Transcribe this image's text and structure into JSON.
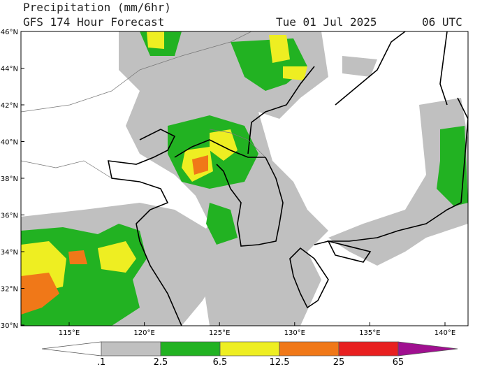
{
  "header": {
    "title": "Precipitation (mm/6hr)",
    "subtitle": "GFS 174 Hour Forecast",
    "date": "Tue 01 Jul 2025",
    "time": "06 UTC"
  },
  "map": {
    "lat_labels": [
      "46°N",
      "44°N",
      "42°N",
      "40°N",
      "38°N",
      "36°N",
      "34°N",
      "32°N",
      "30°N"
    ],
    "lon_labels": [
      "115°E",
      "120°E",
      "125°E",
      "130°E",
      "135°E",
      "140°E"
    ]
  },
  "colorbar": {
    "labels": [
      ".1",
      "2.5",
      "6.5",
      "12.5",
      "25",
      "65"
    ],
    "colors": [
      "#ffffff",
      "#c0c0c0",
      "#22b222",
      "#eeee22",
      "#f07818",
      "#e82020",
      "#a01090"
    ]
  }
}
